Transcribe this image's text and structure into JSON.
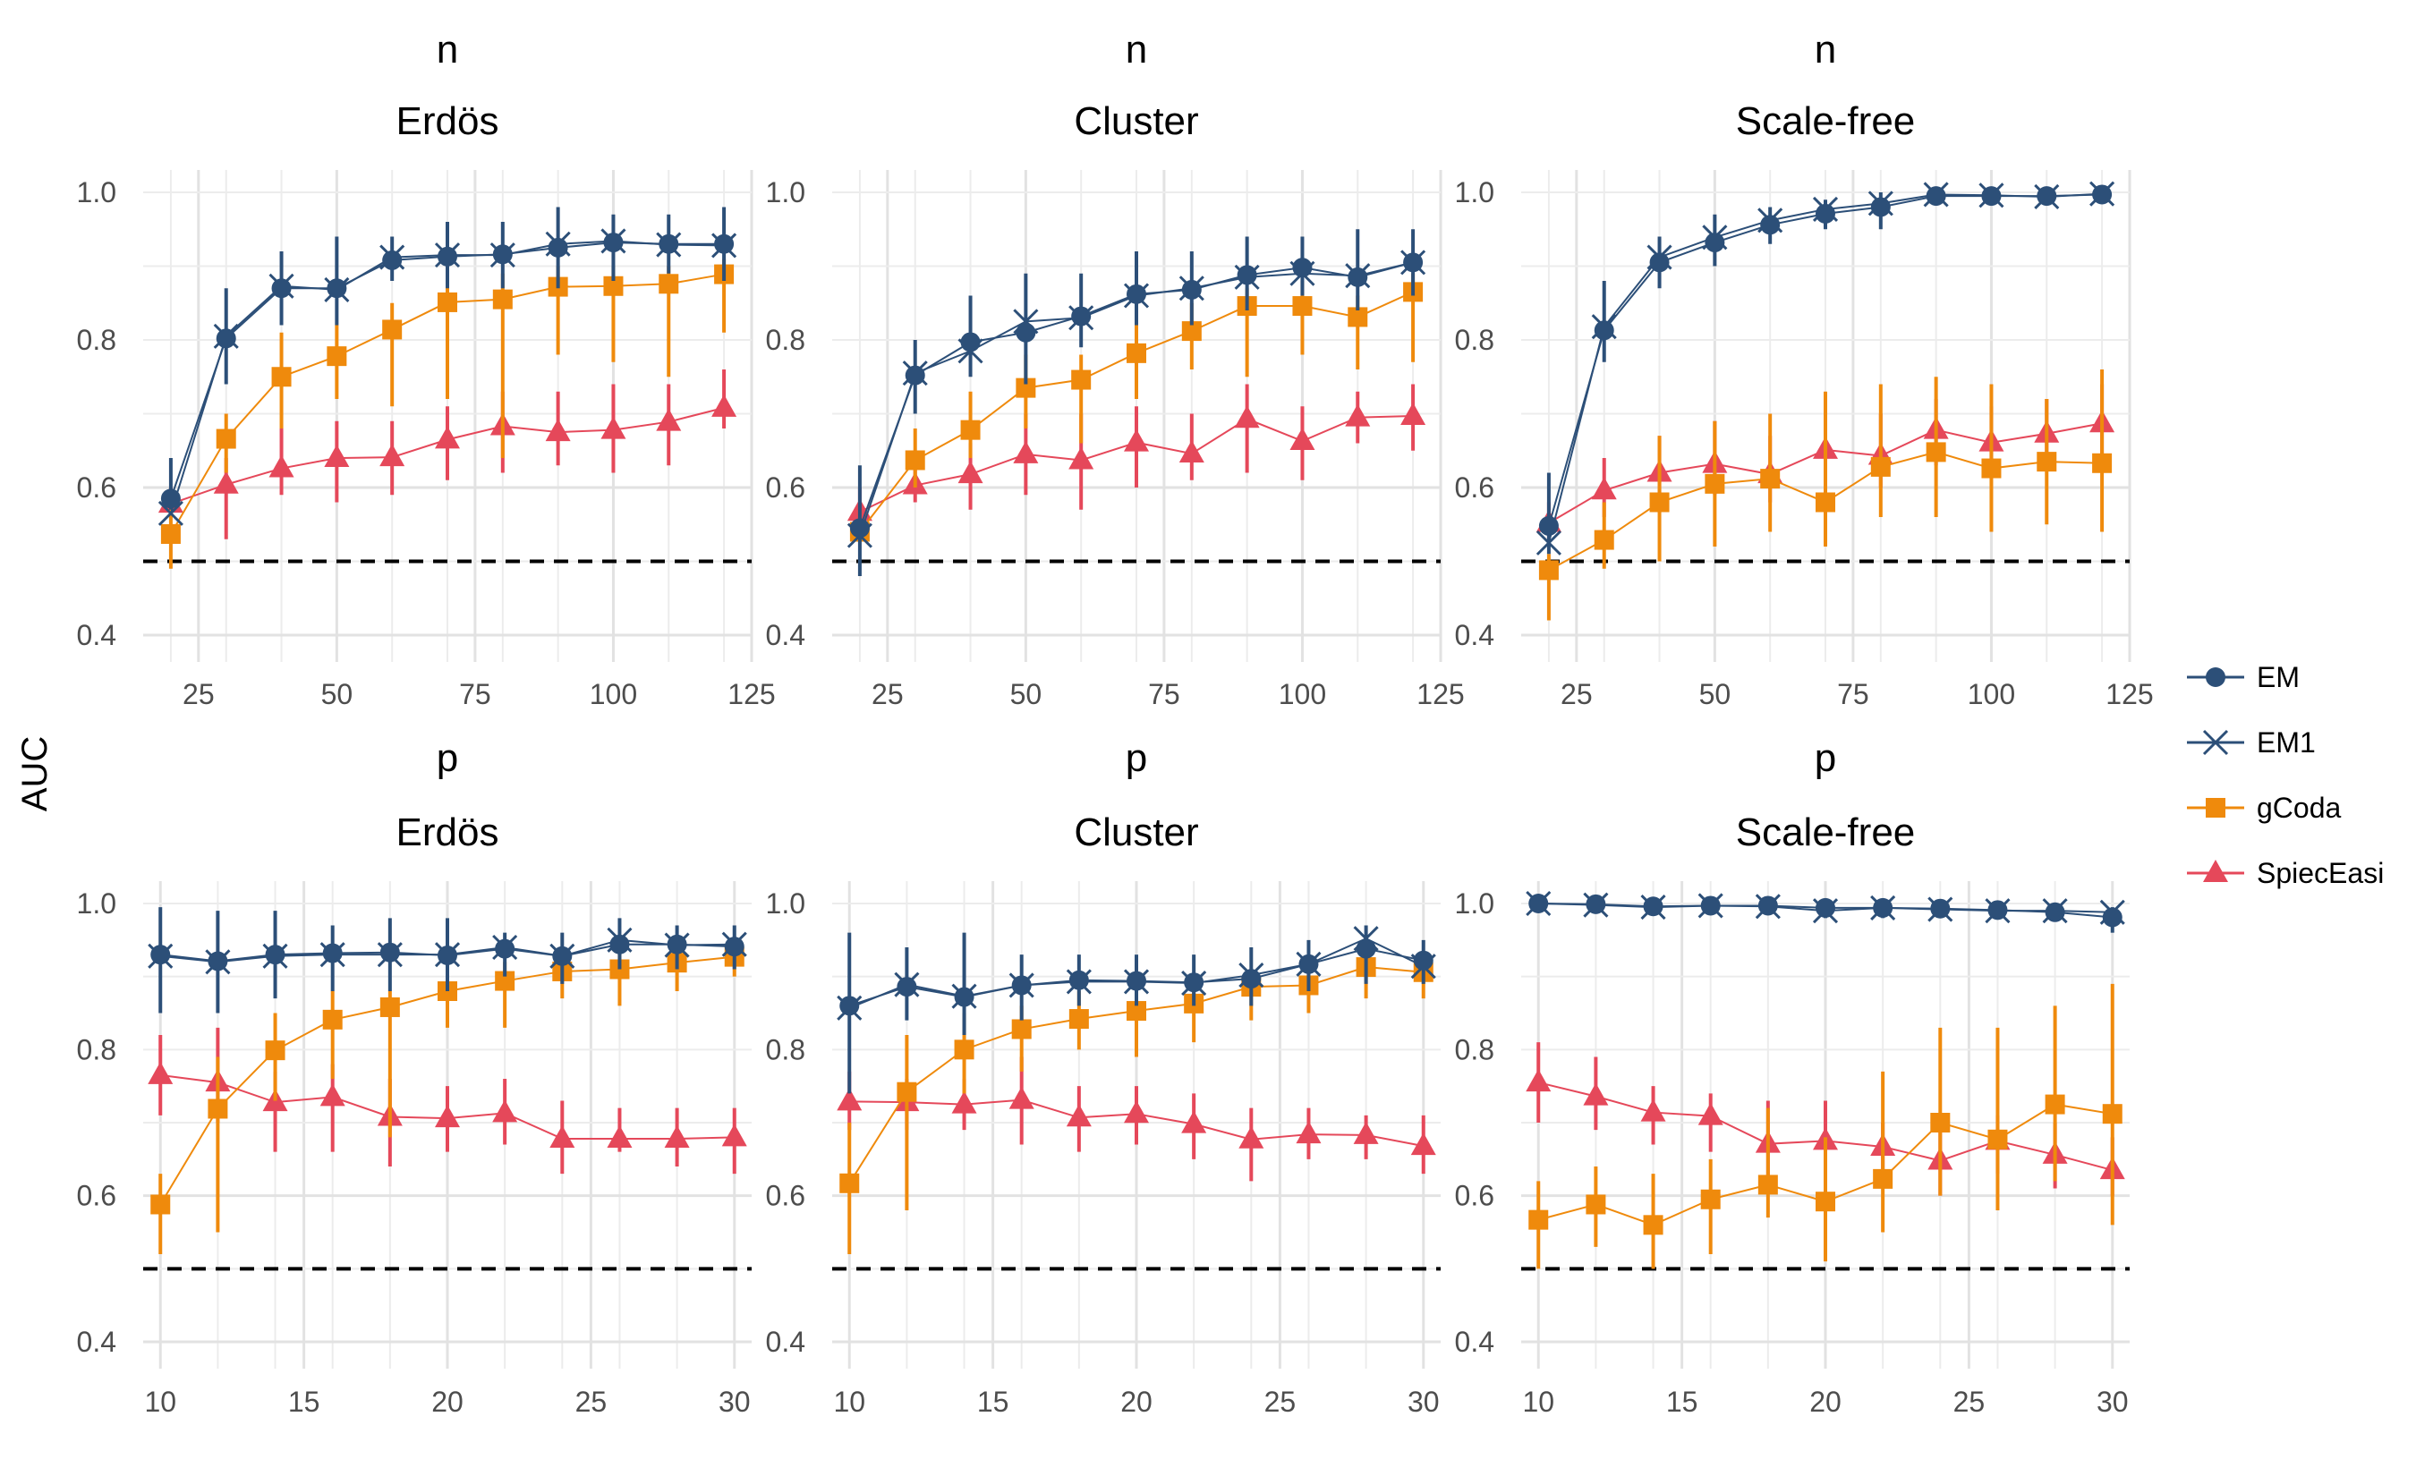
{
  "figure": {
    "ylabel": "AUC",
    "legend_position": "right",
    "grid": true,
    "reference_line": 0.5
  },
  "legend": [
    {
      "name": "EM",
      "color": "#2c4f78",
      "marker": "circle"
    },
    {
      "name": "EM1",
      "color": "#2c4f78",
      "marker": "cross"
    },
    {
      "name": "gCoda",
      "color": "#ef8a0c",
      "marker": "square"
    },
    {
      "name": "SpiecEasi",
      "color": "#e5485a",
      "marker": "triangle"
    }
  ],
  "chart_data": [
    {
      "type": "line",
      "row_title": "n",
      "title": "Erdös",
      "x": [
        20,
        30,
        40,
        50,
        60,
        70,
        80,
        90,
        100,
        110,
        120
      ],
      "xlim": [
        15,
        125
      ],
      "xticks": [
        25,
        50,
        75,
        100,
        125
      ],
      "ylim": [
        0.4,
        1.0
      ],
      "yticks": [
        0.4,
        0.6,
        0.8,
        1.0
      ],
      "series": [
        {
          "name": "EM",
          "values": [
            0.585,
            0.802,
            0.87,
            0.87,
            0.908,
            0.913,
            0.916,
            0.925,
            0.932,
            0.93,
            0.93
          ],
          "err_low": [
            0.57,
            0.74,
            0.82,
            0.82,
            0.88,
            0.87,
            0.87,
            0.87,
            0.88,
            0.89,
            0.88
          ],
          "err_high": [
            0.64,
            0.87,
            0.92,
            0.94,
            0.94,
            0.96,
            0.96,
            0.98,
            0.97,
            0.97,
            0.98
          ]
        },
        {
          "name": "EM1",
          "values": [
            0.565,
            0.805,
            0.873,
            0.868,
            0.912,
            0.915,
            0.915,
            0.93,
            0.934,
            0.929,
            0.928
          ]
        },
        {
          "name": "gCoda",
          "values": [
            0.537,
            0.666,
            0.75,
            0.778,
            0.814,
            0.851,
            0.855,
            0.872,
            0.873,
            0.876,
            0.889
          ],
          "err_low": [
            0.49,
            0.62,
            0.68,
            0.72,
            0.71,
            0.72,
            0.64,
            0.78,
            0.77,
            0.75,
            0.81
          ],
          "err_high": [
            0.57,
            0.7,
            0.81,
            0.82,
            0.85,
            0.88,
            0.89,
            0.9,
            0.9,
            0.9,
            0.91
          ]
        },
        {
          "name": "SpiecEasi",
          "values": [
            0.578,
            0.604,
            0.626,
            0.64,
            0.641,
            0.665,
            0.683,
            0.675,
            0.678,
            0.689,
            0.708
          ],
          "err_low": [
            0.56,
            0.53,
            0.59,
            0.58,
            0.59,
            0.61,
            0.62,
            0.63,
            0.62,
            0.63,
            0.68
          ],
          "err_high": [
            0.6,
            0.64,
            0.68,
            0.69,
            0.69,
            0.71,
            0.73,
            0.73,
            0.74,
            0.74,
            0.76
          ]
        }
      ]
    },
    {
      "type": "line",
      "row_title": "n",
      "title": "Cluster",
      "x": [
        20,
        30,
        40,
        50,
        60,
        70,
        80,
        90,
        100,
        110,
        120
      ],
      "xlim": [
        15,
        125
      ],
      "xticks": [
        25,
        50,
        75,
        100,
        125
      ],
      "ylim": [
        0.4,
        1.0
      ],
      "yticks": [
        0.4,
        0.6,
        0.8,
        1.0
      ],
      "series": [
        {
          "name": "EM",
          "values": [
            0.545,
            0.752,
            0.797,
            0.81,
            0.832,
            0.862,
            0.868,
            0.888,
            0.898,
            0.885,
            0.905
          ],
          "err_low": [
            0.48,
            0.7,
            0.75,
            0.74,
            0.79,
            0.82,
            0.82,
            0.84,
            0.86,
            0.84,
            0.86
          ],
          "err_high": [
            0.63,
            0.8,
            0.86,
            0.89,
            0.89,
            0.92,
            0.92,
            0.94,
            0.94,
            0.95,
            0.95
          ]
        },
        {
          "name": "EM1",
          "values": [
            0.535,
            0.755,
            0.785,
            0.825,
            0.83,
            0.86,
            0.87,
            0.885,
            0.89,
            0.887,
            0.905
          ]
        },
        {
          "name": "gCoda",
          "values": [
            0.54,
            0.637,
            0.678,
            0.735,
            0.746,
            0.782,
            0.812,
            0.846,
            0.846,
            0.831,
            0.865
          ],
          "err_low": [
            0.53,
            0.6,
            0.64,
            0.68,
            0.66,
            0.72,
            0.76,
            0.75,
            0.78,
            0.76,
            0.77
          ],
          "err_high": [
            0.57,
            0.68,
            0.73,
            0.78,
            0.78,
            0.84,
            0.85,
            0.87,
            0.88,
            0.86,
            0.89
          ]
        },
        {
          "name": "SpiecEasi",
          "values": [
            0.567,
            0.603,
            0.618,
            0.645,
            0.637,
            0.661,
            0.646,
            0.693,
            0.663,
            0.695,
            0.697
          ],
          "err_low": [
            0.53,
            0.58,
            0.57,
            0.59,
            0.57,
            0.6,
            0.61,
            0.62,
            0.61,
            0.66,
            0.65
          ],
          "err_high": [
            0.6,
            0.63,
            0.66,
            0.7,
            0.7,
            0.71,
            0.7,
            0.74,
            0.71,
            0.73,
            0.74
          ]
        }
      ]
    },
    {
      "type": "line",
      "row_title": "n",
      "title": "Scale-free",
      "x": [
        20,
        30,
        40,
        50,
        60,
        70,
        80,
        90,
        100,
        110,
        120
      ],
      "xlim": [
        15,
        125
      ],
      "xticks": [
        25,
        50,
        75,
        100,
        125
      ],
      "ylim": [
        0.4,
        1.0
      ],
      "yticks": [
        0.4,
        0.6,
        0.8,
        1.0
      ],
      "series": [
        {
          "name": "EM",
          "values": [
            0.548,
            0.813,
            0.905,
            0.932,
            0.956,
            0.971,
            0.98,
            0.995,
            0.995,
            0.995,
            0.997
          ],
          "err_low": [
            0.51,
            0.77,
            0.87,
            0.9,
            0.93,
            0.95,
            0.95,
            0.99,
            0.99,
            0.99,
            0.99
          ],
          "err_high": [
            0.62,
            0.88,
            0.94,
            0.97,
            0.98,
            0.99,
            1.0,
            1.0,
            1.0,
            1.0,
            1.0
          ]
        },
        {
          "name": "EM1",
          "values": [
            0.525,
            0.818,
            0.912,
            0.939,
            0.962,
            0.977,
            0.985,
            0.997,
            0.996,
            0.994,
            0.998
          ]
        },
        {
          "name": "gCoda",
          "values": [
            0.488,
            0.529,
            0.58,
            0.605,
            0.612,
            0.58,
            0.628,
            0.648,
            0.626,
            0.635,
            0.633
          ],
          "err_low": [
            0.42,
            0.49,
            0.5,
            0.52,
            0.54,
            0.52,
            0.56,
            0.56,
            0.54,
            0.55,
            0.54
          ],
          "err_high": [
            0.51,
            0.58,
            0.67,
            0.69,
            0.7,
            0.73,
            0.74,
            0.75,
            0.74,
            0.72,
            0.76
          ]
        },
        {
          "name": "SpiecEasi",
          "values": [
            0.552,
            0.596,
            0.62,
            0.632,
            0.618,
            0.651,
            0.643,
            0.678,
            0.661,
            0.673,
            0.687
          ],
          "err_low": [
            0.53,
            0.56,
            0.58,
            0.59,
            0.58,
            0.6,
            0.6,
            0.63,
            0.62,
            0.63,
            0.64
          ],
          "err_high": [
            0.58,
            0.64,
            0.67,
            0.69,
            0.67,
            0.7,
            0.7,
            0.72,
            0.71,
            0.72,
            0.74
          ]
        }
      ]
    },
    {
      "type": "line",
      "row_title": "p",
      "title": "Erdös",
      "x": [
        10,
        12,
        14,
        16,
        18,
        20,
        22,
        24,
        26,
        28,
        30
      ],
      "xlim": [
        9.4,
        30.6
      ],
      "xticks": [
        10,
        15,
        20,
        25,
        30
      ],
      "ylim": [
        0.4,
        1.0
      ],
      "yticks": [
        0.4,
        0.6,
        0.8,
        1.0
      ],
      "series": [
        {
          "name": "EM",
          "values": [
            0.93,
            0.921,
            0.93,
            0.932,
            0.933,
            0.929,
            0.938,
            0.928,
            0.944,
            0.944,
            0.941
          ],
          "err_low": [
            0.85,
            0.85,
            0.87,
            0.88,
            0.88,
            0.88,
            0.9,
            0.89,
            0.91,
            0.91,
            0.91
          ],
          "err_high": [
            0.995,
            0.99,
            0.99,
            0.97,
            0.98,
            0.98,
            0.96,
            0.96,
            0.98,
            0.97,
            0.97
          ]
        },
        {
          "name": "EM1",
          "values": [
            0.928,
            0.92,
            0.928,
            0.93,
            0.93,
            0.93,
            0.94,
            0.928,
            0.95,
            0.943,
            0.944
          ]
        },
        {
          "name": "gCoda",
          "values": [
            0.588,
            0.719,
            0.799,
            0.841,
            0.858,
            0.88,
            0.894,
            0.907,
            0.91,
            0.919,
            0.927
          ],
          "err_low": [
            0.52,
            0.55,
            0.73,
            0.76,
            0.68,
            0.83,
            0.83,
            0.87,
            0.86,
            0.88,
            0.9
          ],
          "err_high": [
            0.63,
            0.79,
            0.85,
            0.88,
            0.88,
            0.91,
            0.92,
            0.93,
            0.94,
            0.94,
            0.94
          ]
        },
        {
          "name": "SpiecEasi",
          "values": [
            0.765,
            0.755,
            0.728,
            0.735,
            0.708,
            0.706,
            0.713,
            0.678,
            0.678,
            0.678,
            0.68
          ],
          "err_low": [
            0.71,
            0.7,
            0.66,
            0.66,
            0.64,
            0.66,
            0.67,
            0.63,
            0.66,
            0.64,
            0.63
          ],
          "err_high": [
            0.82,
            0.83,
            0.77,
            0.78,
            0.76,
            0.75,
            0.76,
            0.73,
            0.72,
            0.72,
            0.72
          ]
        }
      ]
    },
    {
      "type": "line",
      "row_title": "p",
      "title": "Cluster",
      "x": [
        10,
        12,
        14,
        16,
        18,
        20,
        22,
        24,
        26,
        28,
        30
      ],
      "xlim": [
        9.4,
        30.6
      ],
      "xticks": [
        10,
        15,
        20,
        25,
        30
      ],
      "ylim": [
        0.4,
        1.0
      ],
      "yticks": [
        0.4,
        0.6,
        0.8,
        1.0
      ],
      "series": [
        {
          "name": "EM",
          "values": [
            0.86,
            0.886,
            0.872,
            0.888,
            0.895,
            0.894,
            0.892,
            0.897,
            0.917,
            0.938,
            0.922
          ],
          "err_low": [
            0.74,
            0.84,
            0.82,
            0.84,
            0.86,
            0.86,
            0.86,
            0.86,
            0.88,
            0.89,
            0.89
          ],
          "err_high": [
            0.96,
            0.94,
            0.96,
            0.93,
            0.93,
            0.93,
            0.93,
            0.94,
            0.95,
            0.97,
            0.95
          ]
        },
        {
          "name": "EM1",
          "values": [
            0.857,
            0.889,
            0.873,
            0.888,
            0.893,
            0.893,
            0.891,
            0.902,
            0.917,
            0.952,
            0.914
          ]
        },
        {
          "name": "gCoda",
          "values": [
            0.617,
            0.742,
            0.8,
            0.828,
            0.842,
            0.853,
            0.863,
            0.886,
            0.888,
            0.913,
            0.906
          ],
          "err_low": [
            0.52,
            0.58,
            0.74,
            0.77,
            0.8,
            0.79,
            0.81,
            0.84,
            0.85,
            0.87,
            0.87
          ],
          "err_high": [
            0.7,
            0.82,
            0.85,
            0.86,
            0.88,
            0.9,
            0.9,
            0.91,
            0.91,
            0.93,
            0.92
          ]
        },
        {
          "name": "SpiecEasi",
          "values": [
            0.729,
            0.728,
            0.725,
            0.731,
            0.707,
            0.712,
            0.698,
            0.677,
            0.684,
            0.683,
            0.668
          ],
          "err_low": [
            0.69,
            0.69,
            0.69,
            0.67,
            0.66,
            0.67,
            0.65,
            0.62,
            0.65,
            0.65,
            0.63
          ],
          "err_high": [
            0.77,
            0.76,
            0.76,
            0.79,
            0.75,
            0.75,
            0.74,
            0.72,
            0.72,
            0.71,
            0.71
          ]
        }
      ]
    },
    {
      "type": "line",
      "row_title": "p",
      "title": "Scale-free",
      "x": [
        10,
        12,
        14,
        16,
        18,
        20,
        22,
        24,
        26,
        28,
        30
      ],
      "xlim": [
        9.4,
        30.6
      ],
      "xticks": [
        10,
        15,
        20,
        25,
        30
      ],
      "ylim": [
        0.4,
        1.0
      ],
      "yticks": [
        0.4,
        0.6,
        0.8,
        1.0
      ],
      "series": [
        {
          "name": "EM",
          "values": [
            1.0,
            0.999,
            0.996,
            0.997,
            0.997,
            0.994,
            0.994,
            0.993,
            0.991,
            0.988,
            0.981
          ],
          "err_low": [
            0.99,
            0.99,
            0.99,
            0.99,
            0.99,
            0.98,
            0.98,
            0.98,
            0.98,
            0.98,
            0.96
          ],
          "err_high": [
            1.0,
            1.0,
            1.0,
            1.0,
            1.0,
            1.0,
            1.0,
            1.0,
            1.0,
            1.0,
            0.995
          ]
        },
        {
          "name": "EM1",
          "values": [
            1.0,
            0.998,
            0.995,
            0.997,
            0.996,
            0.99,
            0.994,
            0.992,
            0.99,
            0.99,
            0.988
          ]
        },
        {
          "name": "gCoda",
          "values": [
            0.567,
            0.588,
            0.56,
            0.595,
            0.615,
            0.592,
            0.623,
            0.7,
            0.677,
            0.725,
            0.712
          ],
          "err_low": [
            0.5,
            0.53,
            0.5,
            0.52,
            0.57,
            0.51,
            0.55,
            0.6,
            0.58,
            0.62,
            0.56
          ],
          "err_high": [
            0.62,
            0.64,
            0.63,
            0.65,
            0.72,
            0.68,
            0.77,
            0.83,
            0.83,
            0.86,
            0.89
          ]
        },
        {
          "name": "SpiecEasi",
          "values": [
            0.755,
            0.736,
            0.714,
            0.709,
            0.671,
            0.675,
            0.667,
            0.648,
            0.675,
            0.656,
            0.635
          ],
          "err_low": [
            0.7,
            0.69,
            0.67,
            0.66,
            0.62,
            0.63,
            0.62,
            0.6,
            0.63,
            0.61,
            0.6
          ],
          "err_high": [
            0.81,
            0.79,
            0.75,
            0.74,
            0.73,
            0.73,
            0.7,
            0.69,
            0.71,
            0.7,
            0.68
          ]
        }
      ]
    }
  ]
}
